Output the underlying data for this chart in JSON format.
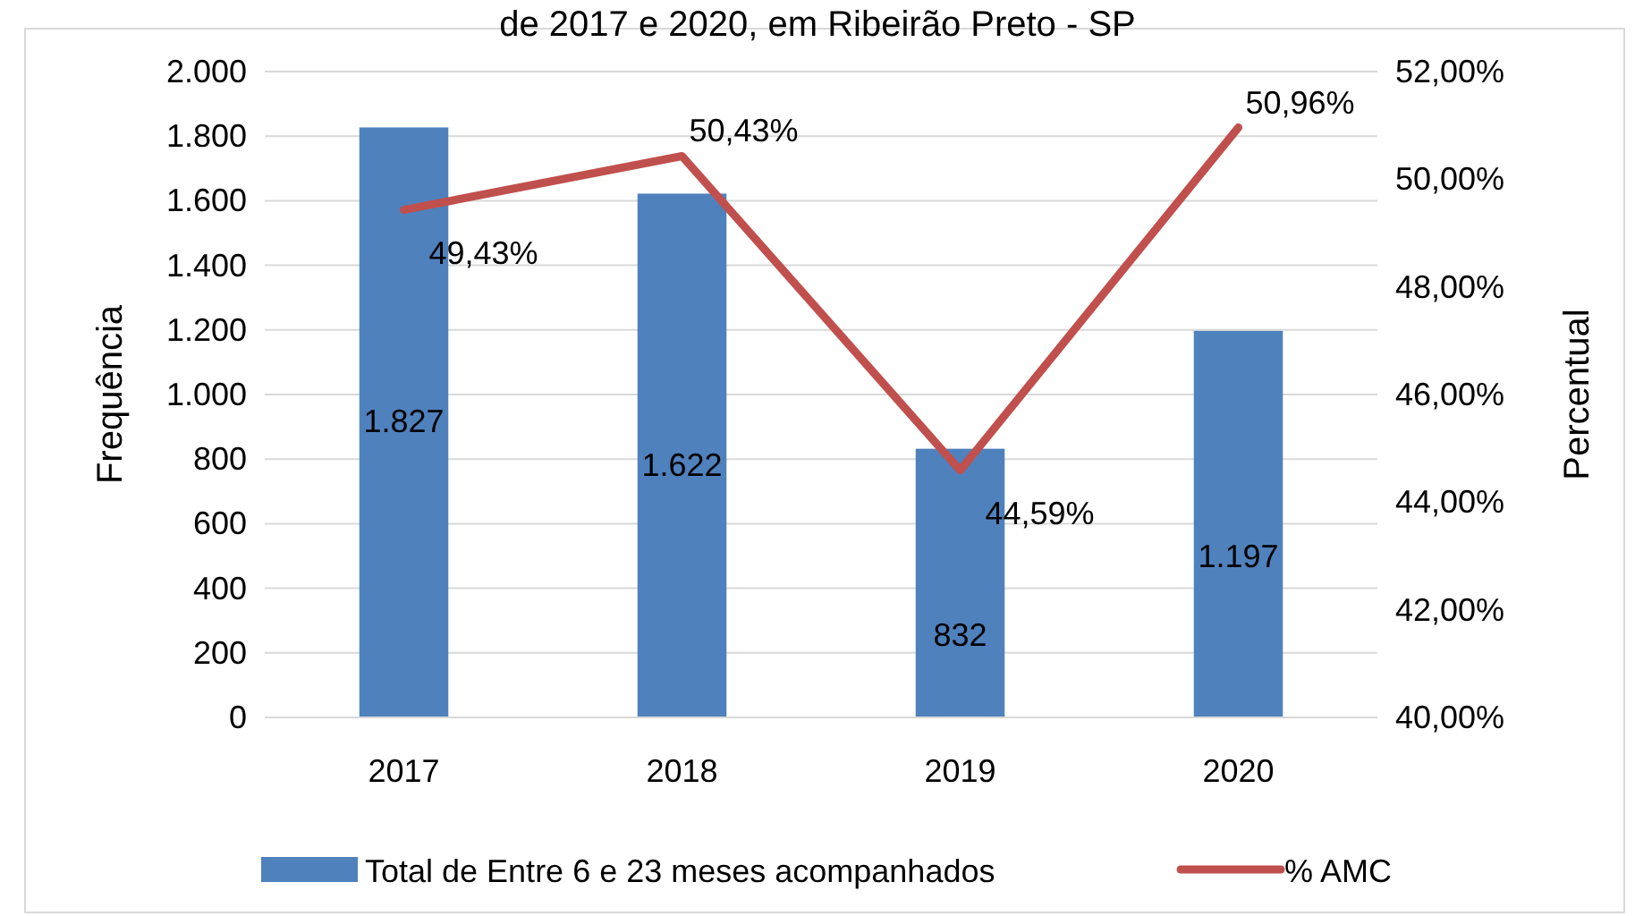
{
  "chart_data": {
    "type": "bar",
    "title": "de 2017 e 2020, em Ribeirão Preto - SP",
    "ylabel": "Frequência",
    "y2label": "Percentual",
    "categories": [
      "2017",
      "2018",
      "2019",
      "2020"
    ],
    "series": [
      {
        "name": "Total de Entre 6 e 23 meses acompanhados",
        "color": "#4f81bd",
        "values": [
          1827,
          1622,
          832,
          1197
        ],
        "value_labels": [
          "1.827",
          "1.622",
          "832",
          "1.197"
        ]
      },
      {
        "name": "% AMC",
        "type": "line",
        "axis": "y2",
        "color": "#c0504d",
        "values": [
          49.43,
          50.43,
          44.59,
          50.96
        ],
        "value_labels": [
          "49,43%",
          "50,43%",
          "44,59%",
          "50,96%"
        ]
      }
    ],
    "ylim": [
      0,
      2000
    ],
    "yticks": [
      {
        "value": 0,
        "label": "0"
      },
      {
        "value": 200,
        "label": "200"
      },
      {
        "value": 400,
        "label": "400"
      },
      {
        "value": 600,
        "label": "600"
      },
      {
        "value": 800,
        "label": "800"
      },
      {
        "value": 1000,
        "label": "1.000"
      },
      {
        "value": 1200,
        "label": "1.200"
      },
      {
        "value": 1400,
        "label": "1.400"
      },
      {
        "value": 1600,
        "label": "1.600"
      },
      {
        "value": 1800,
        "label": "1.800"
      },
      {
        "value": 2000,
        "label": "2.000"
      }
    ],
    "y2lim": [
      40,
      52
    ],
    "y2ticks": [
      {
        "value": 40,
        "label": "40,00%"
      },
      {
        "value": 42,
        "label": "42,00%"
      },
      {
        "value": 44,
        "label": "44,00%"
      },
      {
        "value": 46,
        "label": "46,00%"
      },
      {
        "value": 48,
        "label": "48,00%"
      },
      {
        "value": 50,
        "label": "50,00%"
      },
      {
        "value": 52,
        "label": "52,00%"
      }
    ],
    "grid": "y",
    "legend": "bottom",
    "marker": "none",
    "line_style": "solid"
  }
}
